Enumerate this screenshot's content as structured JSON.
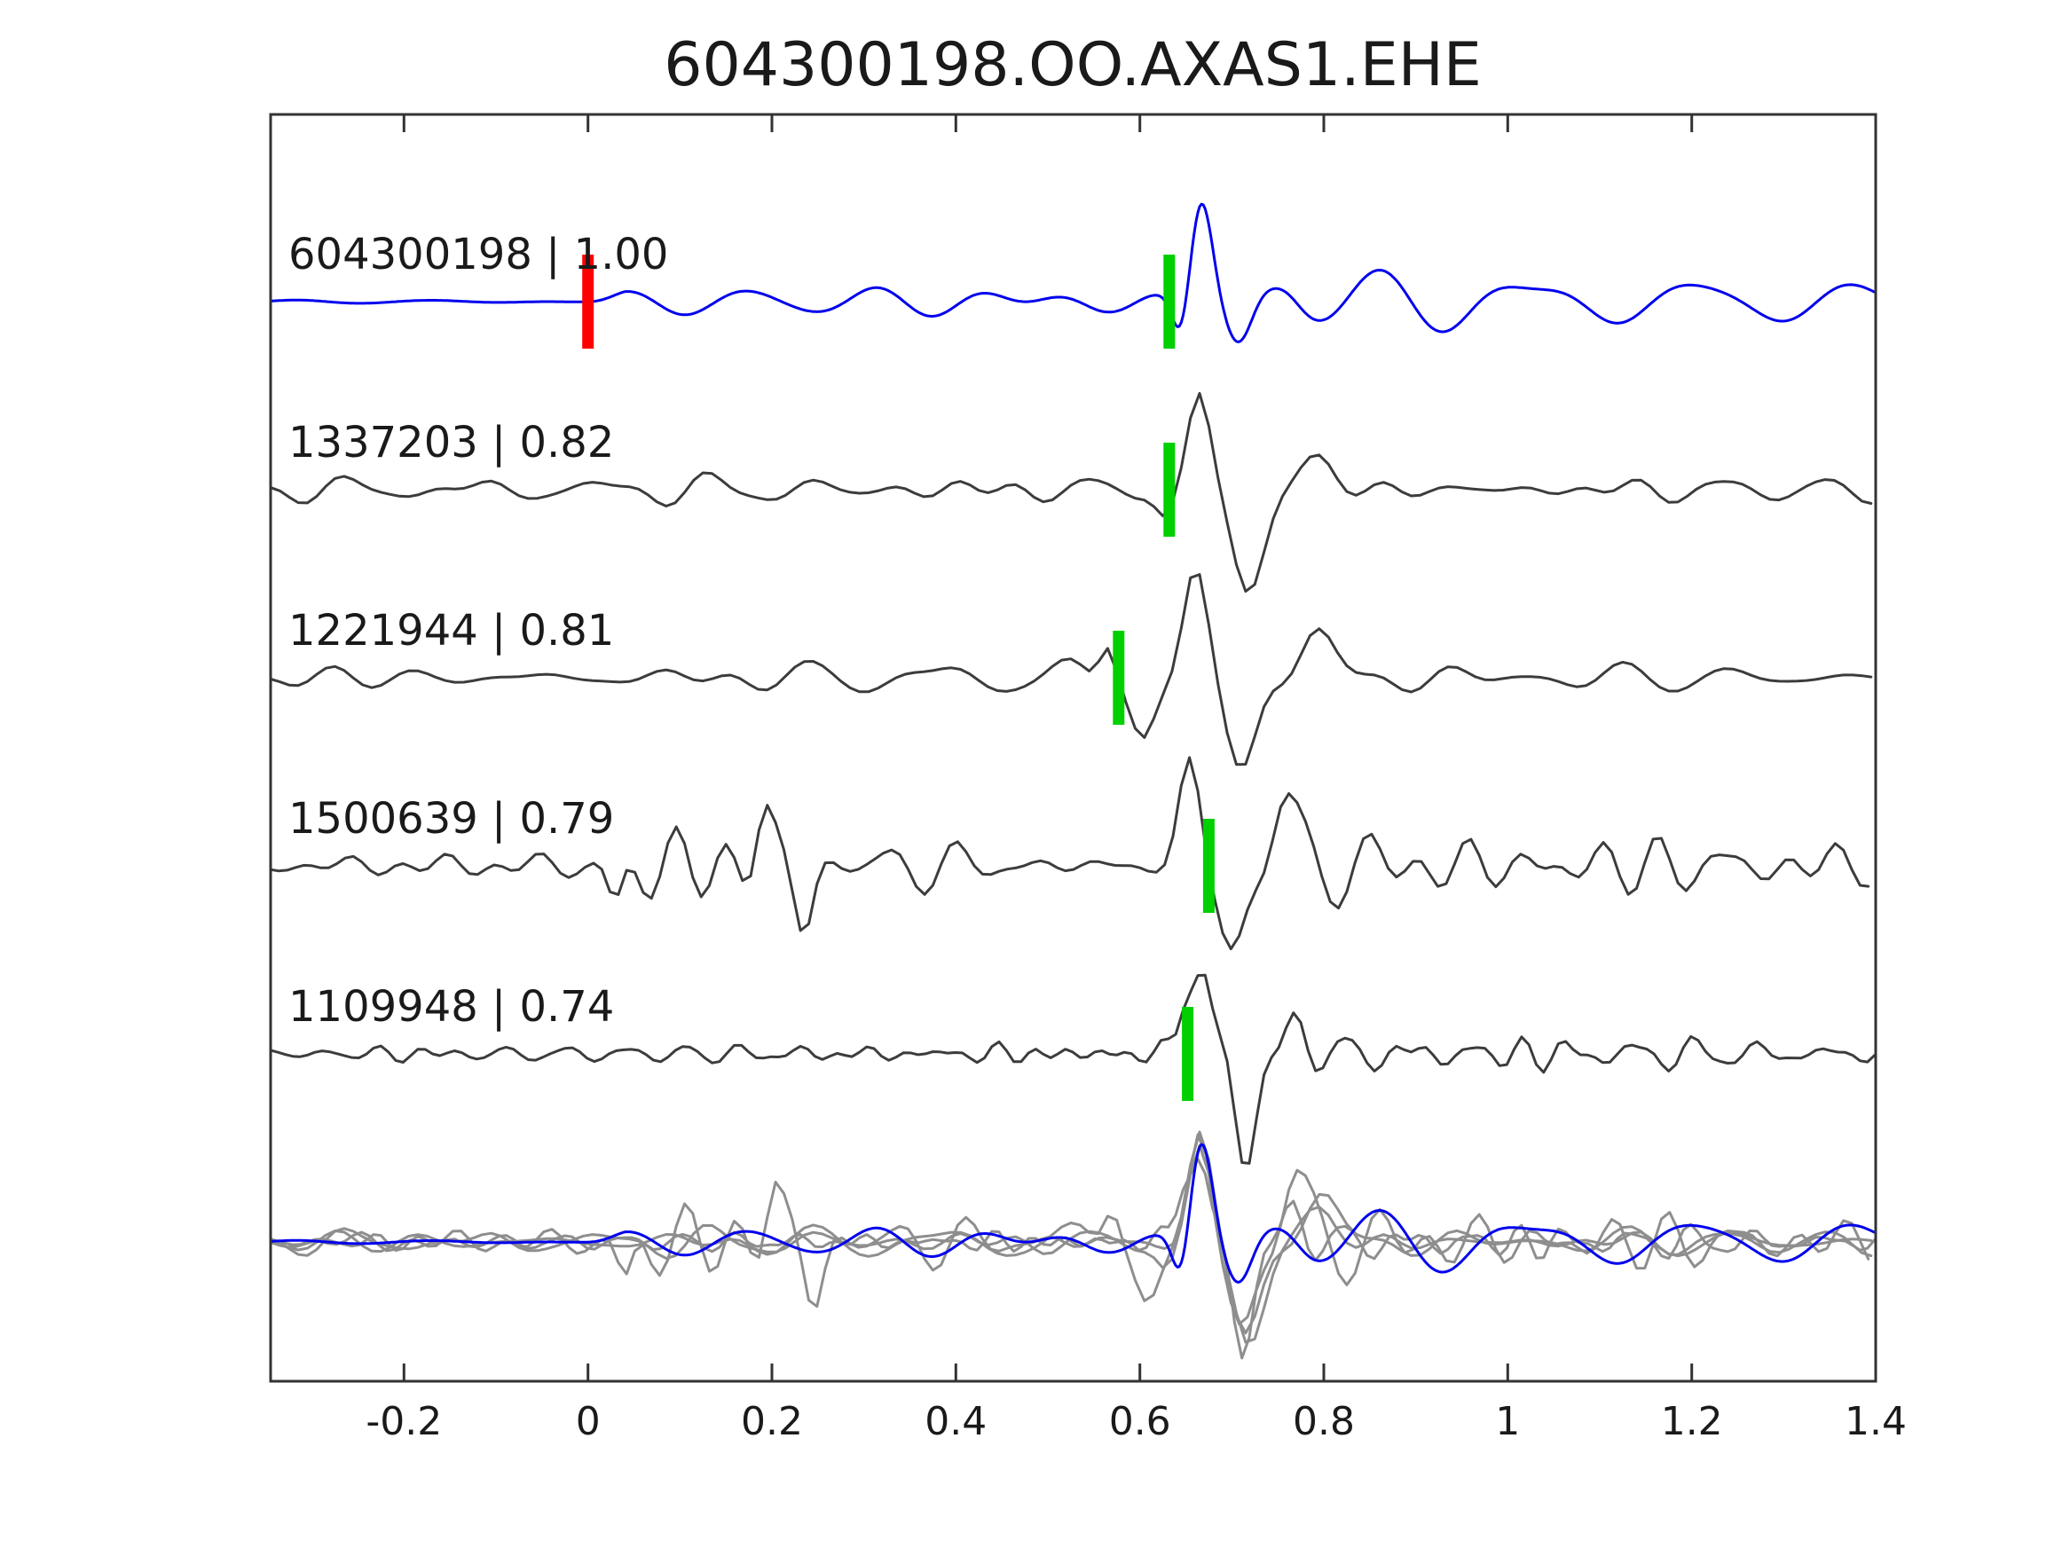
{
  "title": "604300198.OO.AXAS1.EHE",
  "colors": {
    "template_trace": "#0000EE",
    "detection_trace": "#3C3C3C",
    "overlay_gray": "#8E8E8E",
    "template_pick_marker": "#FF0000",
    "detection_pick_marker": "#00CF00",
    "frame": "#333333",
    "text": "#1A1A1A"
  },
  "chart_data": {
    "type": "line",
    "title": "604300198.OO.AXAS1.EHE",
    "xlabel": "",
    "ylabel": "",
    "xlim": [
      -0.345,
      1.4
    ],
    "grid": false,
    "legend": "none",
    "x_ticks": [
      -0.2,
      0,
      0.2,
      0.4,
      0.6,
      0.8,
      1,
      1.2,
      1.4
    ],
    "x_tick_labels": [
      "-0.2",
      "0",
      "0.2",
      "0.4",
      "0.6",
      "0.8",
      "1",
      "1.2",
      "1.4"
    ],
    "rows_note": "five labelled waveform rows plus one unlabelled overlay row at bottom",
    "traces": [
      {
        "id": "604300198",
        "cc": "1.00",
        "label": "604300198 | 1.00",
        "role": "template",
        "color": "#0000EE",
        "picks": [
          {
            "x": 0.0,
            "color": "#FF0000"
          },
          {
            "x": 0.632,
            "color": "#00CF00"
          }
        ],
        "overlay_shift": 0,
        "synth": {
          "seed": 7,
          "band": [
            5,
            11
          ],
          "ncomp": 26,
          "dx": 0.002,
          "env": [
            [
              -0.345,
              2
            ],
            [
              -0.005,
              2
            ],
            [
              0.04,
              20
            ],
            [
              0.3,
              26
            ],
            [
              0.6,
              27
            ],
            [
              0.8,
              22
            ],
            [
              1.4,
              22
            ]
          ],
          "wavelets": [
            {
              "t": 0.645,
              "a": -48,
              "w": 0.013
            },
            {
              "t": 0.667,
              "a": 117,
              "w": 0.017
            },
            {
              "t": 0.708,
              "a": -55,
              "w": 0.02
            },
            {
              "t": 0.76,
              "a": 18,
              "w": 0.025
            }
          ]
        }
      },
      {
        "id": "1337203",
        "cc": "0.82",
        "label": "1337203 | 0.82",
        "role": "detection",
        "color": "#3C3C3C",
        "picks": [
          {
            "x": 0.632,
            "color": "#00CF00"
          }
        ],
        "overlay_shift": 0.001,
        "synth": {
          "seed": 13,
          "band": [
            7,
            19
          ],
          "ncomp": 26,
          "dx": 0.01,
          "env": [
            [
              -0.345,
              11
            ],
            [
              0.05,
              13
            ],
            [
              0.3,
              15
            ],
            [
              0.55,
              16
            ],
            [
              0.75,
              14
            ],
            [
              1.4,
              13
            ]
          ],
          "wavelets": [
            {
              "t": 0.628,
              "a": -30,
              "w": 0.014
            },
            {
              "t": 0.664,
              "a": 108,
              "w": 0.017
            },
            {
              "t": 0.717,
              "a": -112,
              "w": 0.024
            },
            {
              "t": 0.79,
              "a": 30,
              "w": 0.028
            }
          ]
        }
      },
      {
        "id": "1221944",
        "cc": "0.81",
        "label": "1221944 | 0.81",
        "role": "detection",
        "color": "#3C3C3C",
        "picks": [
          {
            "x": 0.577,
            "color": "#00CF00"
          }
        ],
        "overlay_shift": 0.005,
        "synth": {
          "seed": 21,
          "band": [
            6,
            17
          ],
          "ncomp": 26,
          "dx": 0.01,
          "env": [
            [
              -0.345,
              11
            ],
            [
              0.05,
              13
            ],
            [
              0.3,
              16
            ],
            [
              0.55,
              16
            ],
            [
              0.75,
              15
            ],
            [
              1.4,
              14
            ]
          ],
          "wavelets": [
            {
              "t": 0.565,
              "a": 50,
              "w": 0.013
            },
            {
              "t": 0.603,
              "a": -70,
              "w": 0.018
            },
            {
              "t": 0.66,
              "a": 114,
              "w": 0.018
            },
            {
              "t": 0.71,
              "a": -100,
              "w": 0.023
            },
            {
              "t": 0.79,
              "a": 48,
              "w": 0.025
            }
          ]
        }
      },
      {
        "id": "1500639",
        "cc": "0.79",
        "label": "1500639 | 0.79",
        "role": "detection",
        "color": "#3C3C3C",
        "picks": [
          {
            "x": 0.675,
            "color": "#00CF00"
          }
        ],
        "overlay_shift": 0.011,
        "synth": {
          "seed": 5,
          "band": [
            8,
            22
          ],
          "ncomp": 26,
          "dx": 0.009,
          "env": [
            [
              -0.345,
              12
            ],
            [
              0.0,
              13
            ],
            [
              0.05,
              38
            ],
            [
              0.3,
              38
            ],
            [
              0.45,
              30
            ],
            [
              0.6,
              28
            ],
            [
              0.75,
              30
            ],
            [
              1.4,
              28
            ]
          ],
          "wavelets": [
            {
              "t": 0.03,
              "a": -50,
              "w": 0.012
            },
            {
              "t": 0.19,
              "a": 55,
              "w": 0.012
            },
            {
              "t": 0.235,
              "a": -55,
              "w": 0.013
            },
            {
              "t": 0.654,
              "a": 114,
              "w": 0.016
            },
            {
              "t": 0.7,
              "a": -100,
              "w": 0.02
            },
            {
              "t": 0.755,
              "a": 72,
              "w": 0.018
            }
          ]
        }
      },
      {
        "id": "1109948",
        "cc": "0.74",
        "label": "1109948 | 0.74",
        "role": "detection",
        "color": "#3C3C3C",
        "picks": [
          {
            "x": 0.652,
            "color": "#00CF00"
          }
        ],
        "overlay_shift": -0.003,
        "synth": {
          "seed": 42,
          "band": [
            13,
            32
          ],
          "ncomp": 26,
          "dx": 0.008,
          "env": [
            [
              -0.345,
              14
            ],
            [
              0.3,
              15
            ],
            [
              0.6,
              16
            ],
            [
              0.75,
              16
            ],
            [
              1.4,
              15
            ]
          ],
          "wavelets": [
            {
              "t": 0.65,
              "a": 58,
              "w": 0.011
            },
            {
              "t": 0.668,
              "a": 96,
              "w": 0.013
            },
            {
              "t": 0.715,
              "a": -112,
              "w": 0.017
            },
            {
              "t": 0.77,
              "a": 25,
              "w": 0.02
            }
          ]
        }
      }
    ],
    "overlay_row": {
      "description": "all detection waveforms (gray) aligned and superimposed with template (blue)",
      "gray_color": "#8E8E8E",
      "template_color": "#0000EE"
    }
  }
}
